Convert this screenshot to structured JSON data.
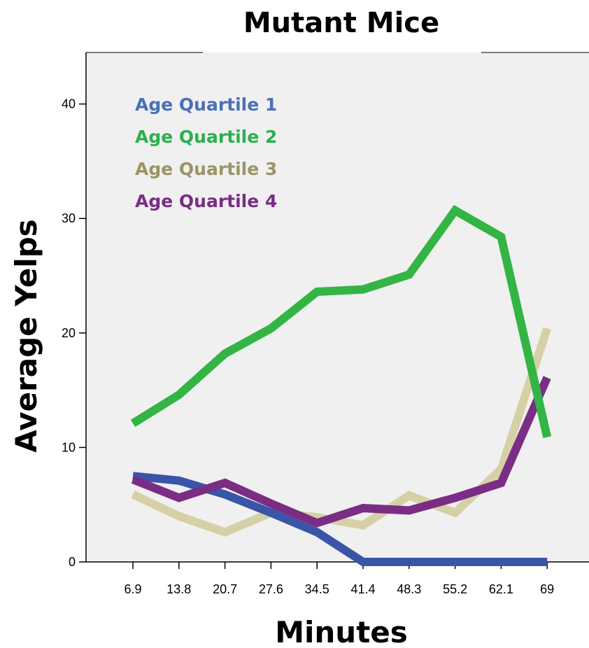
{
  "chart_data": {
    "type": "line",
    "title": "Mutant Mice",
    "xlabel": "Minutes",
    "ylabel": "Average Yelps",
    "x": [
      "6.9",
      "13.8",
      "20.7",
      "27.6",
      "34.5",
      "41.4",
      "48.3",
      "55.2",
      "62.1",
      "69"
    ],
    "yticks": [
      0,
      10,
      20,
      30,
      40
    ],
    "ylim": [
      0,
      44.5
    ],
    "grid": false,
    "legend_position": "top-left",
    "plot_background": "#f0f0f0",
    "series": [
      {
        "name": "Age Quartile 1",
        "color": "#3a55a8",
        "label_color": "#4a70b8",
        "values": [
          7.5,
          7.1,
          5.9,
          4.3,
          2.6,
          0,
          0,
          0,
          0,
          0
        ]
      },
      {
        "name": "Age Quartile 2",
        "color": "#33b444",
        "label_color": "#2ab04e",
        "values": [
          12.1,
          14.6,
          18.2,
          20.4,
          23.6,
          23.8,
          25.1,
          30.7,
          28.4,
          10.9
        ]
      },
      {
        "name": "Age Quartile 3",
        "color": "#d6d0a6",
        "label_color": "#9c9466",
        "values": [
          5.9,
          4.0,
          2.6,
          4.3,
          3.9,
          3.2,
          5.8,
          4.3,
          8.1,
          20.4
        ]
      },
      {
        "name": "Age Quartile 4",
        "color": "#7a2d85",
        "label_color": "#7a2d85",
        "values": [
          7.2,
          5.6,
          6.9,
          5.1,
          3.4,
          4.7,
          4.5,
          5.6,
          6.9,
          16.1
        ]
      }
    ]
  }
}
